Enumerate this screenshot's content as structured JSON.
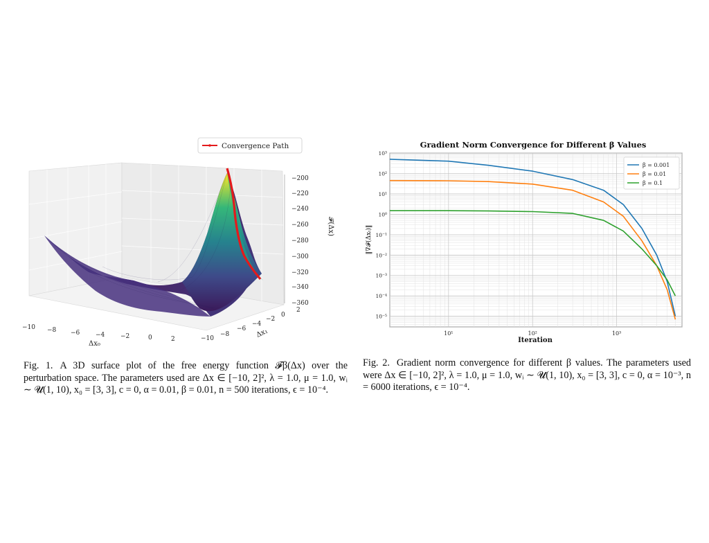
{
  "figure1": {
    "legend_label": "Convergence Path",
    "z_label": "𝓕(Δx)",
    "x_label": "Δx₀",
    "y_label": "Δx₁",
    "z_ticks": [
      "−200",
      "−220",
      "−240",
      "−260",
      "−280",
      "−300",
      "−320",
      "−340",
      "−360"
    ],
    "x_ticks": [
      "−10",
      "−8",
      "−6",
      "−4",
      "−2",
      "0",
      "2"
    ],
    "y_ticks": [
      "−10",
      "−8",
      "−6",
      "−4",
      "−2",
      "0",
      "2"
    ],
    "colors": {
      "surface_low": "#440154",
      "surface_mid": "#21918c",
      "surface_high": "#fde725",
      "path": "#e41a1c"
    }
  },
  "figure2": {
    "chart_data": {
      "type": "line",
      "title": "Gradient Norm Convergence for Different β Values",
      "xlabel": "Iteration",
      "ylabel": "‖∇𝓕(Δxₜ)‖",
      "xscale": "log",
      "yscale": "log",
      "xlim": [
        2,
        6000
      ],
      "ylim": [
        3e-06,
        1000
      ],
      "x_tick_labels": [
        "10¹",
        "10²",
        "10³"
      ],
      "y_tick_labels": [
        "10³",
        "10²",
        "10¹",
        "10⁰",
        "10⁻¹",
        "10⁻²",
        "10⁻³",
        "10⁻⁴",
        "10⁻⁵"
      ],
      "grid": true,
      "legend_position": "top-right",
      "series": [
        {
          "name": "β = 0.001",
          "color": "#1f77b4",
          "x": [
            2,
            10,
            30,
            100,
            300,
            700,
            1200,
            2000,
            3000,
            4000,
            5000
          ],
          "y": [
            500,
            400,
            250,
            130,
            50,
            15,
            3,
            0.2,
            0.01,
            0.0005,
            1e-05
          ]
        },
        {
          "name": "β = 0.01",
          "color": "#ff7f0e",
          "x": [
            2,
            10,
            30,
            100,
            300,
            700,
            1200,
            2000,
            3000,
            4000,
            5000
          ],
          "y": [
            45,
            44,
            40,
            30,
            15,
            4,
            0.8,
            0.05,
            0.003,
            0.0002,
            7e-06
          ]
        },
        {
          "name": "β = 0.1",
          "color": "#2ca02c",
          "x": [
            2,
            10,
            30,
            100,
            300,
            700,
            1200,
            2000,
            3000,
            4000,
            5000
          ],
          "y": [
            1.5,
            1.5,
            1.45,
            1.35,
            1.1,
            0.5,
            0.15,
            0.02,
            0.003,
            0.0006,
            0.0001
          ]
        }
      ]
    }
  },
  "captions": {
    "fig1_label": "Fig. 1.",
    "fig1_text": "A 3D surface plot of the free energy function 𝓕β(Δx) over the perturbation space. The parameters used are Δx ∈ [−10, 2]², λ = 1.0, μ = 1.0, wᵢ ∼ 𝓤(1, 10), x₀ = [3, 3], c = 0, α = 0.01, β = 0.01, n = 500 iterations, ϵ = 10⁻⁴.",
    "fig2_label": "Fig. 2.",
    "fig2_text": "Gradient norm convergence for different β values. The parameters used were Δx ∈ [−10, 2]², λ = 1.0, μ = 1.0, wᵢ ∼ 𝓤(1, 10), x₀ = [3, 3], c = 0, α = 10⁻³, n = 6000 iterations, ϵ = 10⁻⁴."
  }
}
